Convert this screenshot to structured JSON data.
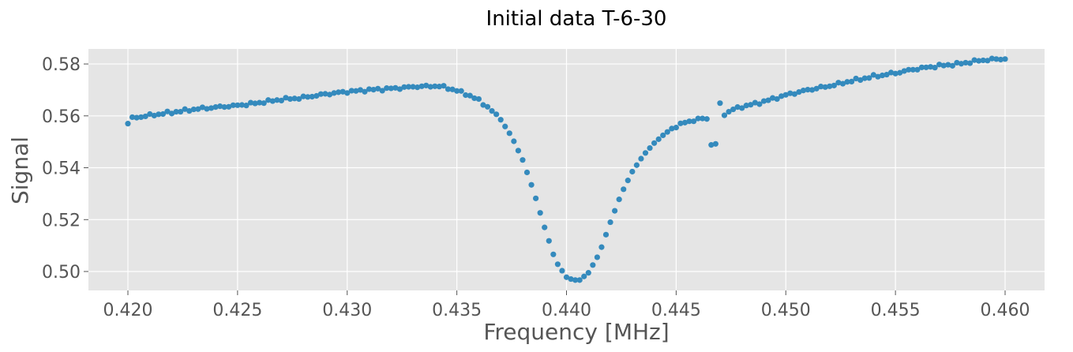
{
  "chart_data": {
    "type": "scatter",
    "title": "Initial data T-6-30",
    "xlabel": "Frequency [MHz]",
    "ylabel": "Signal",
    "xlim": [
      0.4182,
      0.4618
    ],
    "ylim": [
      0.4927,
      0.5858
    ],
    "xticks": [
      0.42,
      0.425,
      0.43,
      0.435,
      0.44,
      0.445,
      0.45,
      0.455,
      0.46
    ],
    "xtick_labels": [
      "0.420",
      "0.425",
      "0.430",
      "0.435",
      "0.440",
      "0.445",
      "0.450",
      "0.455",
      "0.460"
    ],
    "yticks": [
      0.5,
      0.52,
      0.54,
      0.56,
      0.58
    ],
    "ytick_labels": [
      "0.50",
      "0.52",
      "0.54",
      "0.56",
      "0.58"
    ],
    "grid": true,
    "style": "ggplot",
    "colors": {
      "background": "#e5e5e5",
      "grid": "#ffffff",
      "marker": "#348abd",
      "tick_text": "#555555"
    },
    "points": []
  }
}
